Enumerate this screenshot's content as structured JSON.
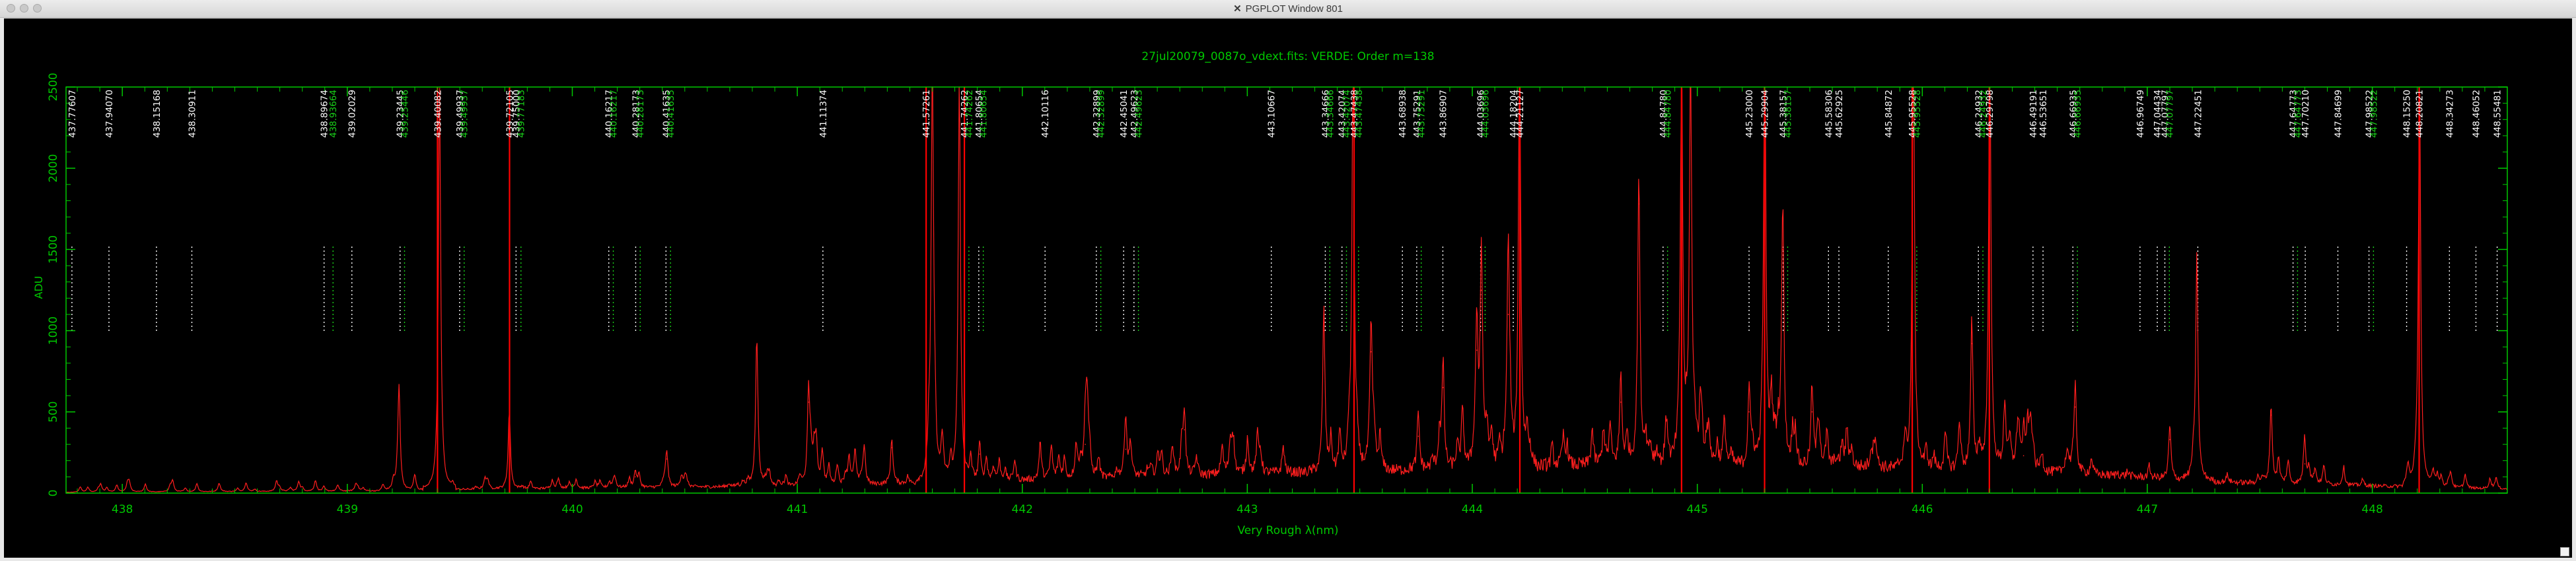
{
  "window": {
    "title": "PGPLOT Window 801",
    "app_icon": "x11-icon",
    "controls": [
      "close",
      "minimize",
      "zoom"
    ]
  },
  "colors": {
    "background": "#000000",
    "frame": "#00c800",
    "spectrum": "#ff1e1e",
    "line_white": "#ffffff",
    "line_green": "#19d219",
    "strong_line": "#ff0000",
    "labels": "#00c800"
  },
  "chart_data": {
    "type": "line",
    "title": "27jul20079_0087o_vdext.fits: VERDE: Order m=138",
    "xlabel": "Very Rough λ(nm)",
    "ylabel": "ADU",
    "xlim": [
      437.75,
      448.6
    ],
    "ylim": [
      0,
      2500
    ],
    "xticks": [
      438,
      439,
      440,
      441,
      442,
      443,
      444,
      445,
      446,
      447,
      448
    ],
    "yticks": [
      0,
      500,
      1000,
      1500,
      2000,
      2500
    ],
    "grid": false,
    "reference_lines": [
      {
        "wl": 437.77607,
        "label": "437.77607",
        "group": "white"
      },
      {
        "wl": 437.9407,
        "label": "437.94070",
        "group": "white"
      },
      {
        "wl": 438.15168,
        "label": "438.15168",
        "group": "white"
      },
      {
        "wl": 438.30911,
        "label": "438.30911",
        "group": "white"
      },
      {
        "wl": 438.89674,
        "label": "438.89674",
        "group": "white"
      },
      {
        "wl": 438.93664,
        "label": "438.93664",
        "group": "green"
      },
      {
        "wl": 439.02029,
        "label": "439.02029",
        "group": "white"
      },
      {
        "wl": 439.23445,
        "label": "439.23445",
        "group": "white"
      },
      {
        "wl": 439.25446,
        "label": "439.25446",
        "group": "green"
      },
      {
        "wl": 439.40082,
        "label": "439.40082",
        "group": "white"
      },
      {
        "wl": 439.49937,
        "label": "439.49937",
        "group": "white"
      },
      {
        "wl": 439.51937,
        "label": "439.49937",
        "group": "green"
      },
      {
        "wl": 439.72105,
        "label": "439.72105",
        "group": "white"
      },
      {
        "wl": 439.75,
        "label": "439.75000",
        "group": "white"
      },
      {
        "wl": 439.77183,
        "label": "439.77183",
        "group": "green"
      },
      {
        "wl": 440.16217,
        "label": "440.16217",
        "group": "white"
      },
      {
        "wl": 440.18217,
        "label": "440.16217",
        "group": "green"
      },
      {
        "wl": 440.28173,
        "label": "440.28173",
        "group": "white"
      },
      {
        "wl": 440.30173,
        "label": "440.28173",
        "group": "green"
      },
      {
        "wl": 440.41635,
        "label": "440.41635",
        "group": "white"
      },
      {
        "wl": 440.43635,
        "label": "440.41635",
        "group": "green"
      },
      {
        "wl": 441.11374,
        "label": "441.11374",
        "group": "white"
      },
      {
        "wl": 441.57261,
        "label": "441.57261",
        "group": "white"
      },
      {
        "wl": 441.74262,
        "label": "441.74262",
        "group": "white"
      },
      {
        "wl": 441.76262,
        "label": "441.74262",
        "group": "green"
      },
      {
        "wl": 441.80654,
        "label": "441.80654",
        "group": "white"
      },
      {
        "wl": 441.82654,
        "label": "441.80654",
        "group": "green"
      },
      {
        "wl": 442.10116,
        "label": "442.10116",
        "group": "white"
      },
      {
        "wl": 442.32899,
        "label": "442.32899",
        "group": "white"
      },
      {
        "wl": 442.34899,
        "label": "442.32899",
        "group": "green"
      },
      {
        "wl": 442.45041,
        "label": "442.45041",
        "group": "white"
      },
      {
        "wl": 442.49623,
        "label": "442.49623",
        "group": "white"
      },
      {
        "wl": 442.51623,
        "label": "442.49623",
        "group": "green"
      },
      {
        "wl": 443.10667,
        "label": "443.10667",
        "group": "white"
      },
      {
        "wl": 443.34666,
        "label": "443.34666",
        "group": "white"
      },
      {
        "wl": 443.36666,
        "label": "443.34666",
        "group": "green"
      },
      {
        "wl": 443.42074,
        "label": "443.42074",
        "group": "white"
      },
      {
        "wl": 443.44074,
        "label": "443.42074",
        "group": "green"
      },
      {
        "wl": 443.47438,
        "label": "443.47438",
        "group": "white"
      },
      {
        "wl": 443.49438,
        "label": "443.47438",
        "group": "green"
      },
      {
        "wl": 443.68938,
        "label": "443.68938",
        "group": "white"
      },
      {
        "wl": 443.75291,
        "label": "443.75291",
        "group": "white"
      },
      {
        "wl": 443.77291,
        "label": "443.75291",
        "group": "green"
      },
      {
        "wl": 443.86907,
        "label": "443.86907",
        "group": "white"
      },
      {
        "wl": 444.03696,
        "label": "444.03696",
        "group": "white"
      },
      {
        "wl": 444.05696,
        "label": "444.03696",
        "group": "green"
      },
      {
        "wl": 444.18204,
        "label": "444.18204",
        "group": "white"
      },
      {
        "wl": 444.21127,
        "label": "444.21127",
        "group": "white"
      },
      {
        "wl": 444.8478,
        "label": "444.84780",
        "group": "white"
      },
      {
        "wl": 444.8678,
        "label": "444.84780",
        "group": "green"
      },
      {
        "wl": 445.23,
        "label": "445.23000",
        "group": "white"
      },
      {
        "wl": 445.29904,
        "label": "445.29904",
        "group": "white"
      },
      {
        "wl": 445.38157,
        "label": "445.38157",
        "group": "white"
      },
      {
        "wl": 445.40157,
        "label": "445.38157",
        "group": "green"
      },
      {
        "wl": 445.58306,
        "label": "445.58306",
        "group": "white"
      },
      {
        "wl": 445.62925,
        "label": "445.62925",
        "group": "white"
      },
      {
        "wl": 445.84872,
        "label": "445.84872",
        "group": "white"
      },
      {
        "wl": 445.95528,
        "label": "445.95528",
        "group": "white"
      },
      {
        "wl": 445.97528,
        "label": "445.95528",
        "group": "green"
      },
      {
        "wl": 446.24932,
        "label": "446.24932",
        "group": "white"
      },
      {
        "wl": 446.26932,
        "label": "446.24932",
        "group": "green"
      },
      {
        "wl": 446.29798,
        "label": "446.29798",
        "group": "white"
      },
      {
        "wl": 446.49191,
        "label": "446.49191",
        "group": "white"
      },
      {
        "wl": 446.53651,
        "label": "446.53651",
        "group": "white"
      },
      {
        "wl": 446.66935,
        "label": "446.66935",
        "group": "white"
      },
      {
        "wl": 446.68935,
        "label": "446.66935",
        "group": "green"
      },
      {
        "wl": 446.96749,
        "label": "446.96749",
        "group": "white"
      },
      {
        "wl": 447.04434,
        "label": "447.04434",
        "group": "white"
      },
      {
        "wl": 447.07797,
        "label": "447.07797",
        "group": "white"
      },
      {
        "wl": 447.09797,
        "label": "447.07797",
        "group": "green"
      },
      {
        "wl": 447.22451,
        "label": "447.22451",
        "group": "white"
      },
      {
        "wl": 447.64773,
        "label": "447.64773",
        "group": "white"
      },
      {
        "wl": 447.66773,
        "label": "447.64773",
        "group": "green"
      },
      {
        "wl": 447.7021,
        "label": "447.70210",
        "group": "white"
      },
      {
        "wl": 447.84699,
        "label": "447.84699",
        "group": "white"
      },
      {
        "wl": 447.98522,
        "label": "447.98522",
        "group": "white"
      },
      {
        "wl": 448.00522,
        "label": "447.98522",
        "group": "green"
      },
      {
        "wl": 448.1525,
        "label": "448.15250",
        "group": "white"
      },
      {
        "wl": 448.20821,
        "label": "448.20821",
        "group": "white"
      },
      {
        "wl": 448.34273,
        "label": "448.34273",
        "group": "white"
      },
      {
        "wl": 448.46052,
        "label": "448.46052",
        "group": "white"
      },
      {
        "wl": 448.55481,
        "label": "448.55481",
        "group": "white"
      }
    ],
    "strong_lines": [
      439.40082,
      439.72105,
      441.57261,
      441.74262,
      443.47438,
      444.21127,
      444.93,
      445.29904,
      445.95528,
      446.29798,
      448.20821
    ],
    "spectrum_peaks": [
      {
        "wl": 439.23,
        "adu": 620
      },
      {
        "wl": 439.41,
        "adu": 2500
      },
      {
        "wl": 439.72,
        "adu": 480
      },
      {
        "wl": 440.28,
        "adu": 100
      },
      {
        "wl": 440.42,
        "adu": 210
      },
      {
        "wl": 440.82,
        "adu": 880
      },
      {
        "wl": 441.05,
        "adu": 560
      },
      {
        "wl": 441.42,
        "adu": 280
      },
      {
        "wl": 441.6,
        "adu": 2500
      },
      {
        "wl": 441.72,
        "adu": 2500
      },
      {
        "wl": 441.81,
        "adu": 240
      },
      {
        "wl": 442.28,
        "adu": 300
      },
      {
        "wl": 442.46,
        "adu": 270
      },
      {
        "wl": 442.72,
        "adu": 390
      },
      {
        "wl": 443.34,
        "adu": 1000
      },
      {
        "wl": 443.47,
        "adu": 2500
      },
      {
        "wl": 443.55,
        "adu": 870
      },
      {
        "wl": 443.76,
        "adu": 350
      },
      {
        "wl": 443.87,
        "adu": 650
      },
      {
        "wl": 444.02,
        "adu": 880
      },
      {
        "wl": 444.04,
        "adu": 1250
      },
      {
        "wl": 444.16,
        "adu": 1100
      },
      {
        "wl": 444.21,
        "adu": 2500
      },
      {
        "wl": 444.66,
        "adu": 560
      },
      {
        "wl": 444.74,
        "adu": 1780
      },
      {
        "wl": 444.93,
        "adu": 2500
      },
      {
        "wl": 444.97,
        "adu": 2500
      },
      {
        "wl": 445.23,
        "adu": 500
      },
      {
        "wl": 445.3,
        "adu": 2500
      },
      {
        "wl": 445.38,
        "adu": 1500
      },
      {
        "wl": 445.51,
        "adu": 500
      },
      {
        "wl": 445.96,
        "adu": 2500
      },
      {
        "wl": 446.22,
        "adu": 920
      },
      {
        "wl": 446.3,
        "adu": 2500
      },
      {
        "wl": 446.45,
        "adu": 230
      },
      {
        "wl": 446.68,
        "adu": 530
      },
      {
        "wl": 447.1,
        "adu": 330
      },
      {
        "wl": 447.22,
        "adu": 1380
      },
      {
        "wl": 447.55,
        "adu": 480
      },
      {
        "wl": 447.7,
        "adu": 180
      },
      {
        "wl": 448.21,
        "adu": 2500
      }
    ]
  }
}
